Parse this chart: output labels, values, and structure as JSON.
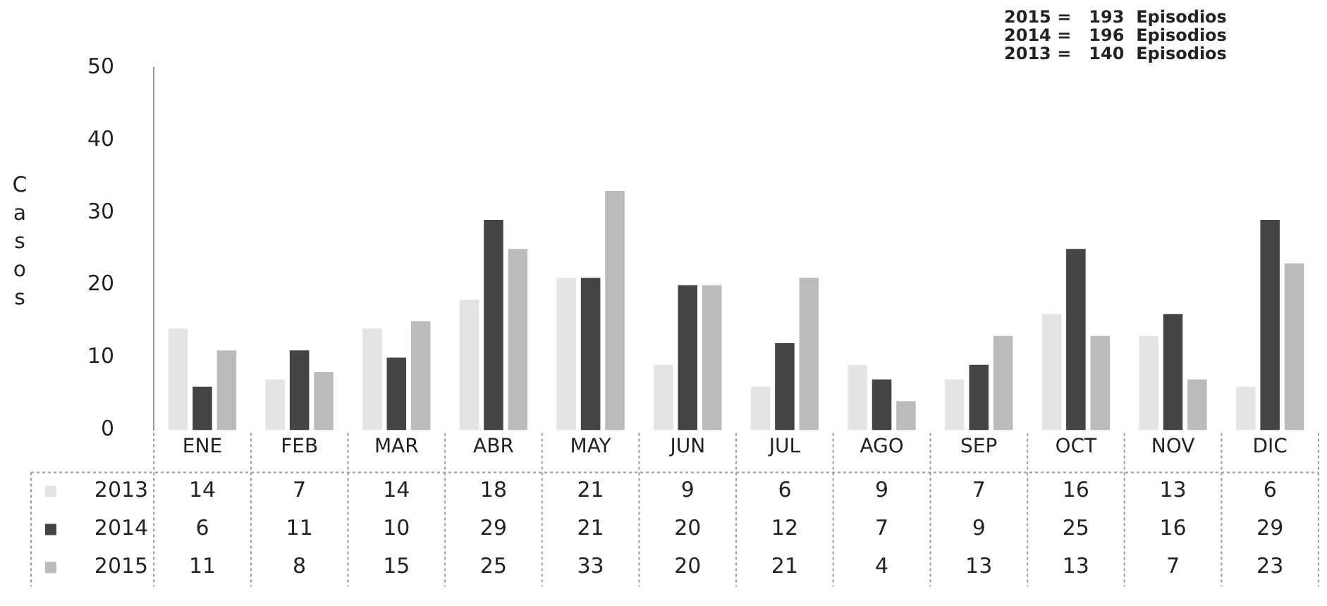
{
  "chart_data": {
    "type": "bar",
    "ylabel": "Casos",
    "categories": [
      "ENE",
      "FEB",
      "MAR",
      "ABR",
      "MAY",
      "JUN",
      "JUL",
      "AGO",
      "SEP",
      "OCT",
      "NOV",
      "DIC"
    ],
    "series": [
      {
        "name": "2013",
        "color": "#e4e4e4",
        "values": [
          14,
          7,
          14,
          18,
          21,
          9,
          6,
          9,
          7,
          16,
          13,
          6
        ]
      },
      {
        "name": "2014",
        "color": "#444444",
        "values": [
          6,
          11,
          10,
          29,
          21,
          20,
          12,
          7,
          9,
          25,
          16,
          29
        ]
      },
      {
        "name": "2015",
        "color": "#bbbbbb",
        "values": [
          11,
          8,
          15,
          25,
          33,
          20,
          21,
          4,
          13,
          13,
          7,
          23
        ]
      }
    ],
    "ylim": [
      0,
      50
    ],
    "yticks": [
      0,
      10,
      20,
      30,
      40,
      50
    ],
    "grid": false,
    "legend": "bottom",
    "data_labels": true,
    "annotations": [
      "2015 =   193  Episodios",
      "2014 =   196  Episodios",
      "2013 =   140  Episodios"
    ]
  }
}
